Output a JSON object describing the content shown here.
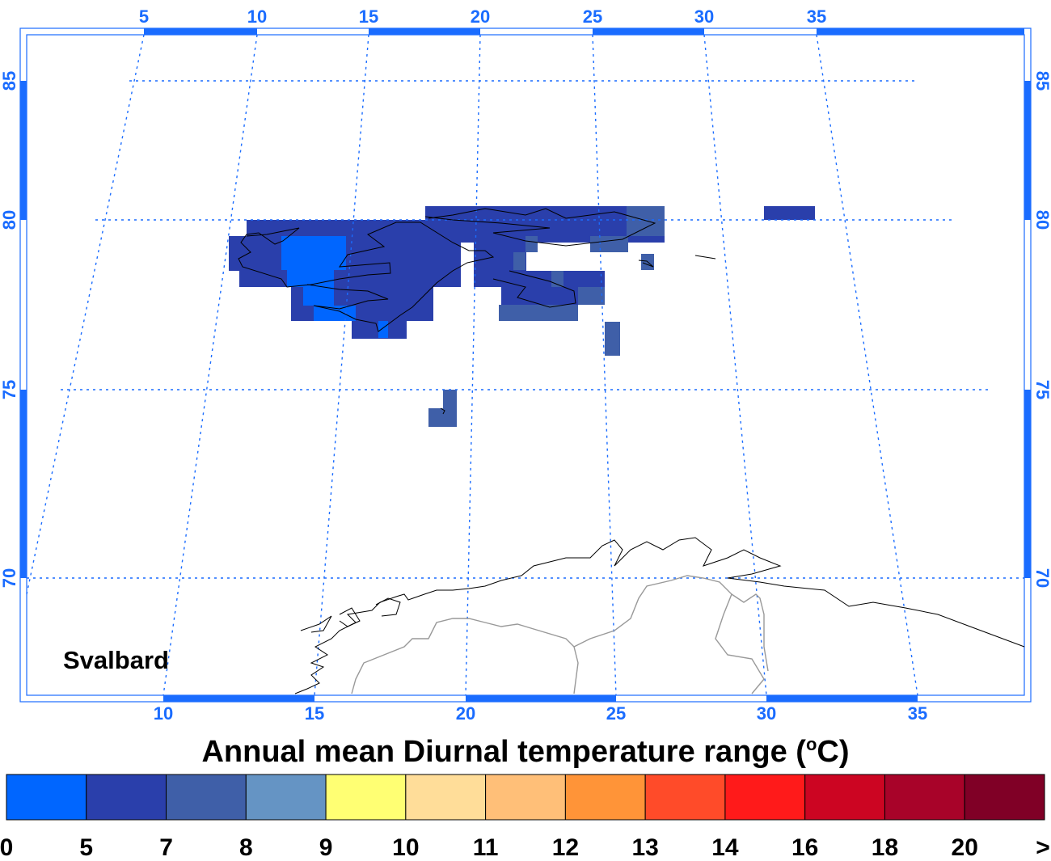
{
  "map": {
    "title": "Annual mean Diurnal temperature range (°C)",
    "title_main": "Annual mean Diurnal temperature range (",
    "title_unit_sup": "o",
    "title_unit_end": "C)",
    "region_label": "Svalbard",
    "top_lon_ticks": [
      "5",
      "10",
      "15",
      "20",
      "25",
      "30",
      "35"
    ],
    "bottom_lon_ticks": [
      "10",
      "15",
      "20",
      "25",
      "30",
      "35"
    ],
    "lat_ticks": [
      "85",
      "80",
      "75",
      "70"
    ]
  },
  "legend": {
    "labels": [
      "0",
      "5",
      "7",
      "8",
      "9",
      "10",
      "11",
      "12",
      "13",
      "14",
      "16",
      "18",
      "20",
      ">"
    ],
    "colors": [
      "#0066ff",
      "#2a3fab",
      "#3f5fa8",
      "#6594c4",
      "#ffff73",
      "#ffdd99",
      "#ffbf78",
      "#ff9438",
      "#ff4b29",
      "#ff1a1a",
      "#cc0522",
      "#a80329",
      "#800026"
    ]
  },
  "colors": {
    "axis": "#1a6cff",
    "coast": "#000000",
    "border": "#999999"
  }
}
